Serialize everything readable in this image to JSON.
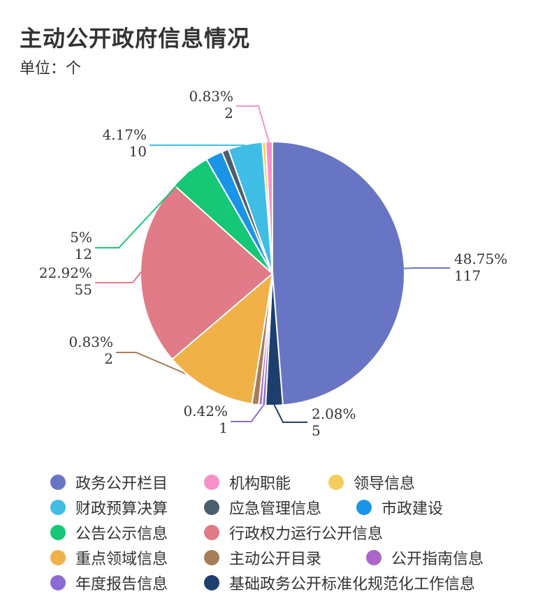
{
  "header": {
    "title": "主动公开政府信息情况",
    "unit_label": "单位：个"
  },
  "chart_data": {
    "type": "pie",
    "title": "主动公开政府信息情况",
    "unit": "单位：个",
    "start_angle_deg": 0,
    "direction": "clockwise",
    "slices": [
      {
        "name": "政务公开栏目",
        "value": 117,
        "percent": "48.75%",
        "color": "#6875c5"
      },
      {
        "name": "基础政务公开标准化规范化工作信息",
        "value": 5,
        "percent": "2.08%",
        "color": "#1e3e6e"
      },
      {
        "name": "年度报告信息",
        "value": 1,
        "percent": "0.42%",
        "color": "#8c6bd6"
      },
      {
        "name": "公开指南信息",
        "value": 1,
        "percent": "",
        "color": "#ac66c8"
      },
      {
        "name": "主动公开目录",
        "value": 2,
        "percent": "0.83%",
        "color": "#a47d5a"
      },
      {
        "name": "重点领域信息",
        "value": 27,
        "percent": "",
        "color": "#f0b149"
      },
      {
        "name": "行政权力运行公开信息",
        "value": 55,
        "percent": "22.92%",
        "color": "#e07b87"
      },
      {
        "name": "公告公示信息",
        "value": 12,
        "percent": "5%",
        "color": "#16c876"
      },
      {
        "name": "市政建设",
        "value": 5,
        "percent": "",
        "color": "#1a94e6"
      },
      {
        "name": "应急管理信息",
        "value": 2,
        "percent": "",
        "color": "#4b5e6e"
      },
      {
        "name": "财政预算决算",
        "value": 10,
        "percent": "4.17%",
        "color": "#40bde5"
      },
      {
        "name": "领导信息",
        "value": 1,
        "percent": "",
        "color": "#f6cc5e"
      },
      {
        "name": "机构职能",
        "value": 2,
        "percent": "0.83%",
        "color": "#f791c8"
      }
    ],
    "legend_order": [
      "政务公开栏目",
      "机构职能",
      "领导信息",
      "财政预算决算",
      "应急管理信息",
      "市政建设",
      "公告公示信息",
      "行政权力运行公开信息",
      "重点领域信息",
      "主动公开目录",
      "公开指南信息",
      "年度报告信息",
      "基础政务公开标准化规范化工作信息"
    ],
    "legend_position": "bottom"
  }
}
